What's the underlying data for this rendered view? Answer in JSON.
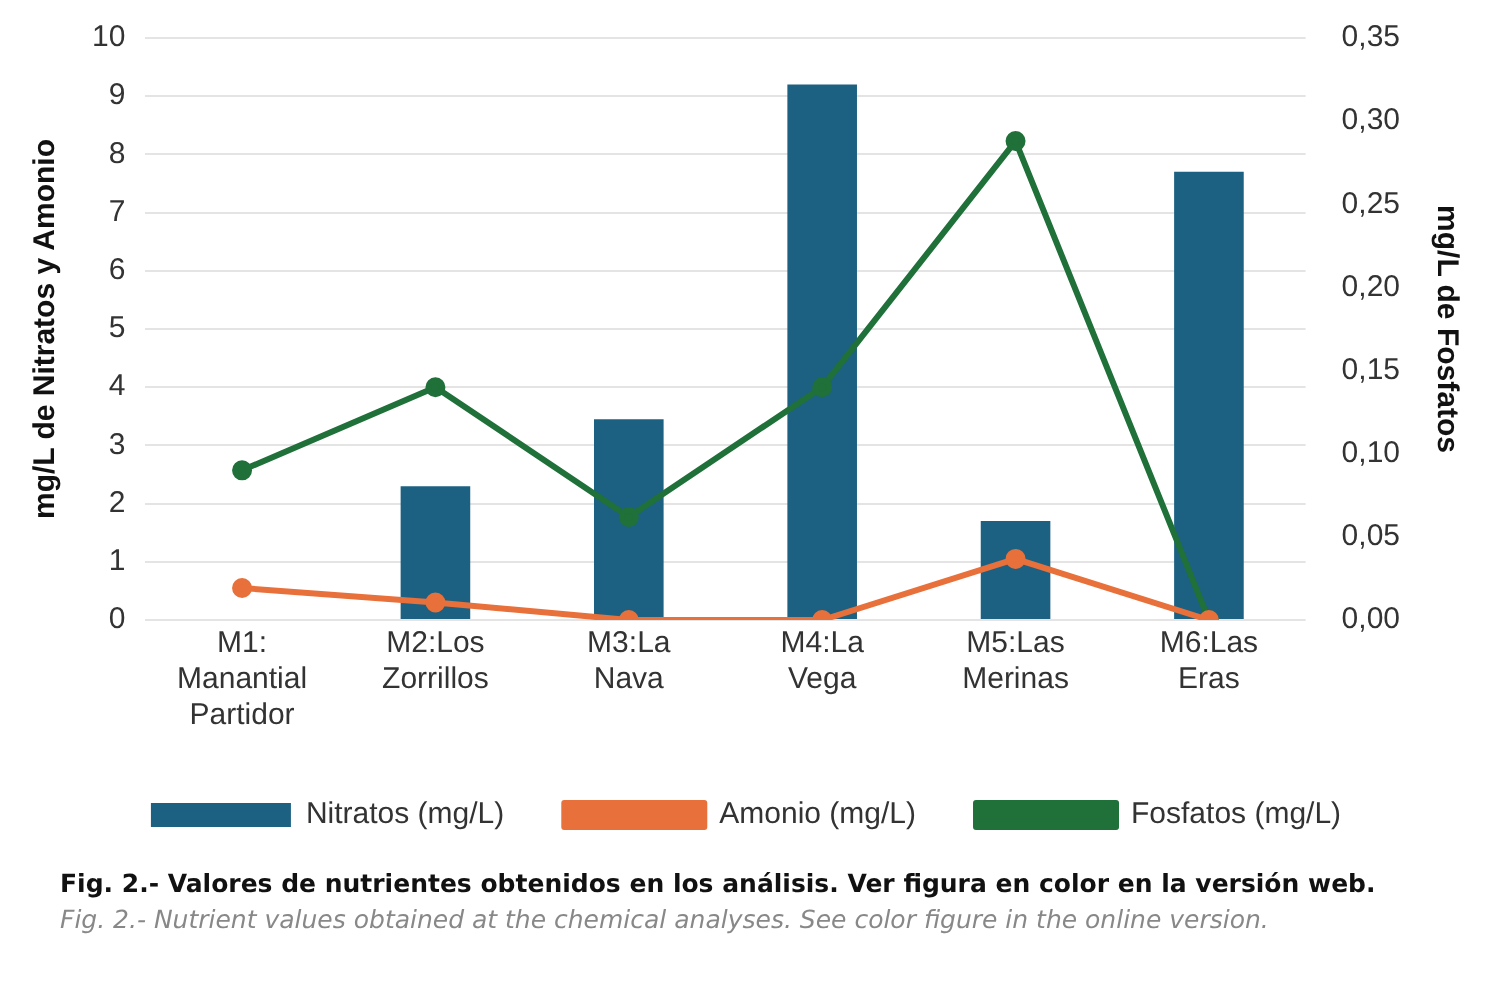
{
  "chart_data": {
    "type": "bar",
    "ylabel": "mg/L de Nitratos y Amonio",
    "y2label": "mg/L de Fosfatos",
    "categories": [
      "M1: Manantial Partidor",
      "M2:Los Zorrillos",
      "M3:La Nava",
      "M4:La Vega",
      "M5:Las Merinas",
      "M6:Las Eras"
    ],
    "series": [
      {
        "name": "Nitratos (mg/L)",
        "color": "#1d6182",
        "values": [
          0,
          2.3,
          3.45,
          9.2,
          1.7,
          7.7
        ]
      },
      {
        "name": "Amonio (mg/L)",
        "type": "line",
        "color": "#e8703a",
        "values": [
          0.55,
          0.3,
          0,
          0,
          1.05,
          0
        ]
      },
      {
        "name": "Fosfatos (mg/L)",
        "type": "line",
        "axis": "y2",
        "color": "#1f7039",
        "values": [
          0.09,
          0.14,
          0.062,
          0.14,
          0.288,
          0
        ]
      }
    ],
    "ylim": [
      0,
      10
    ],
    "yticks": [
      0,
      1,
      2,
      3,
      4,
      5,
      6,
      7,
      8,
      9,
      10
    ],
    "y2lim": [
      0,
      0.35
    ],
    "y2ticks": [
      {
        "value": 0,
        "label": "0,00"
      },
      {
        "value": 0.05,
        "label": "0,05"
      },
      {
        "value": 0.1,
        "label": "0,10"
      },
      {
        "value": 0.15,
        "label": "0,15"
      },
      {
        "value": 0.2,
        "label": "0,20"
      },
      {
        "value": 0.25,
        "label": "0,25"
      },
      {
        "value": 0.3,
        "label": "0,30"
      },
      {
        "value": 0.35,
        "label": "0,35"
      }
    ],
    "grid": "y",
    "legend": "bottom",
    "marker": "circle",
    "annotations": [
      "Fig. 2.- Valores de nutrientes obtenidos en los análisis. Ver figura en color en la versión web.",
      "Fig. 2.- Nutrient values obtained at the chemical analyses. See color figure in the online version."
    ]
  }
}
